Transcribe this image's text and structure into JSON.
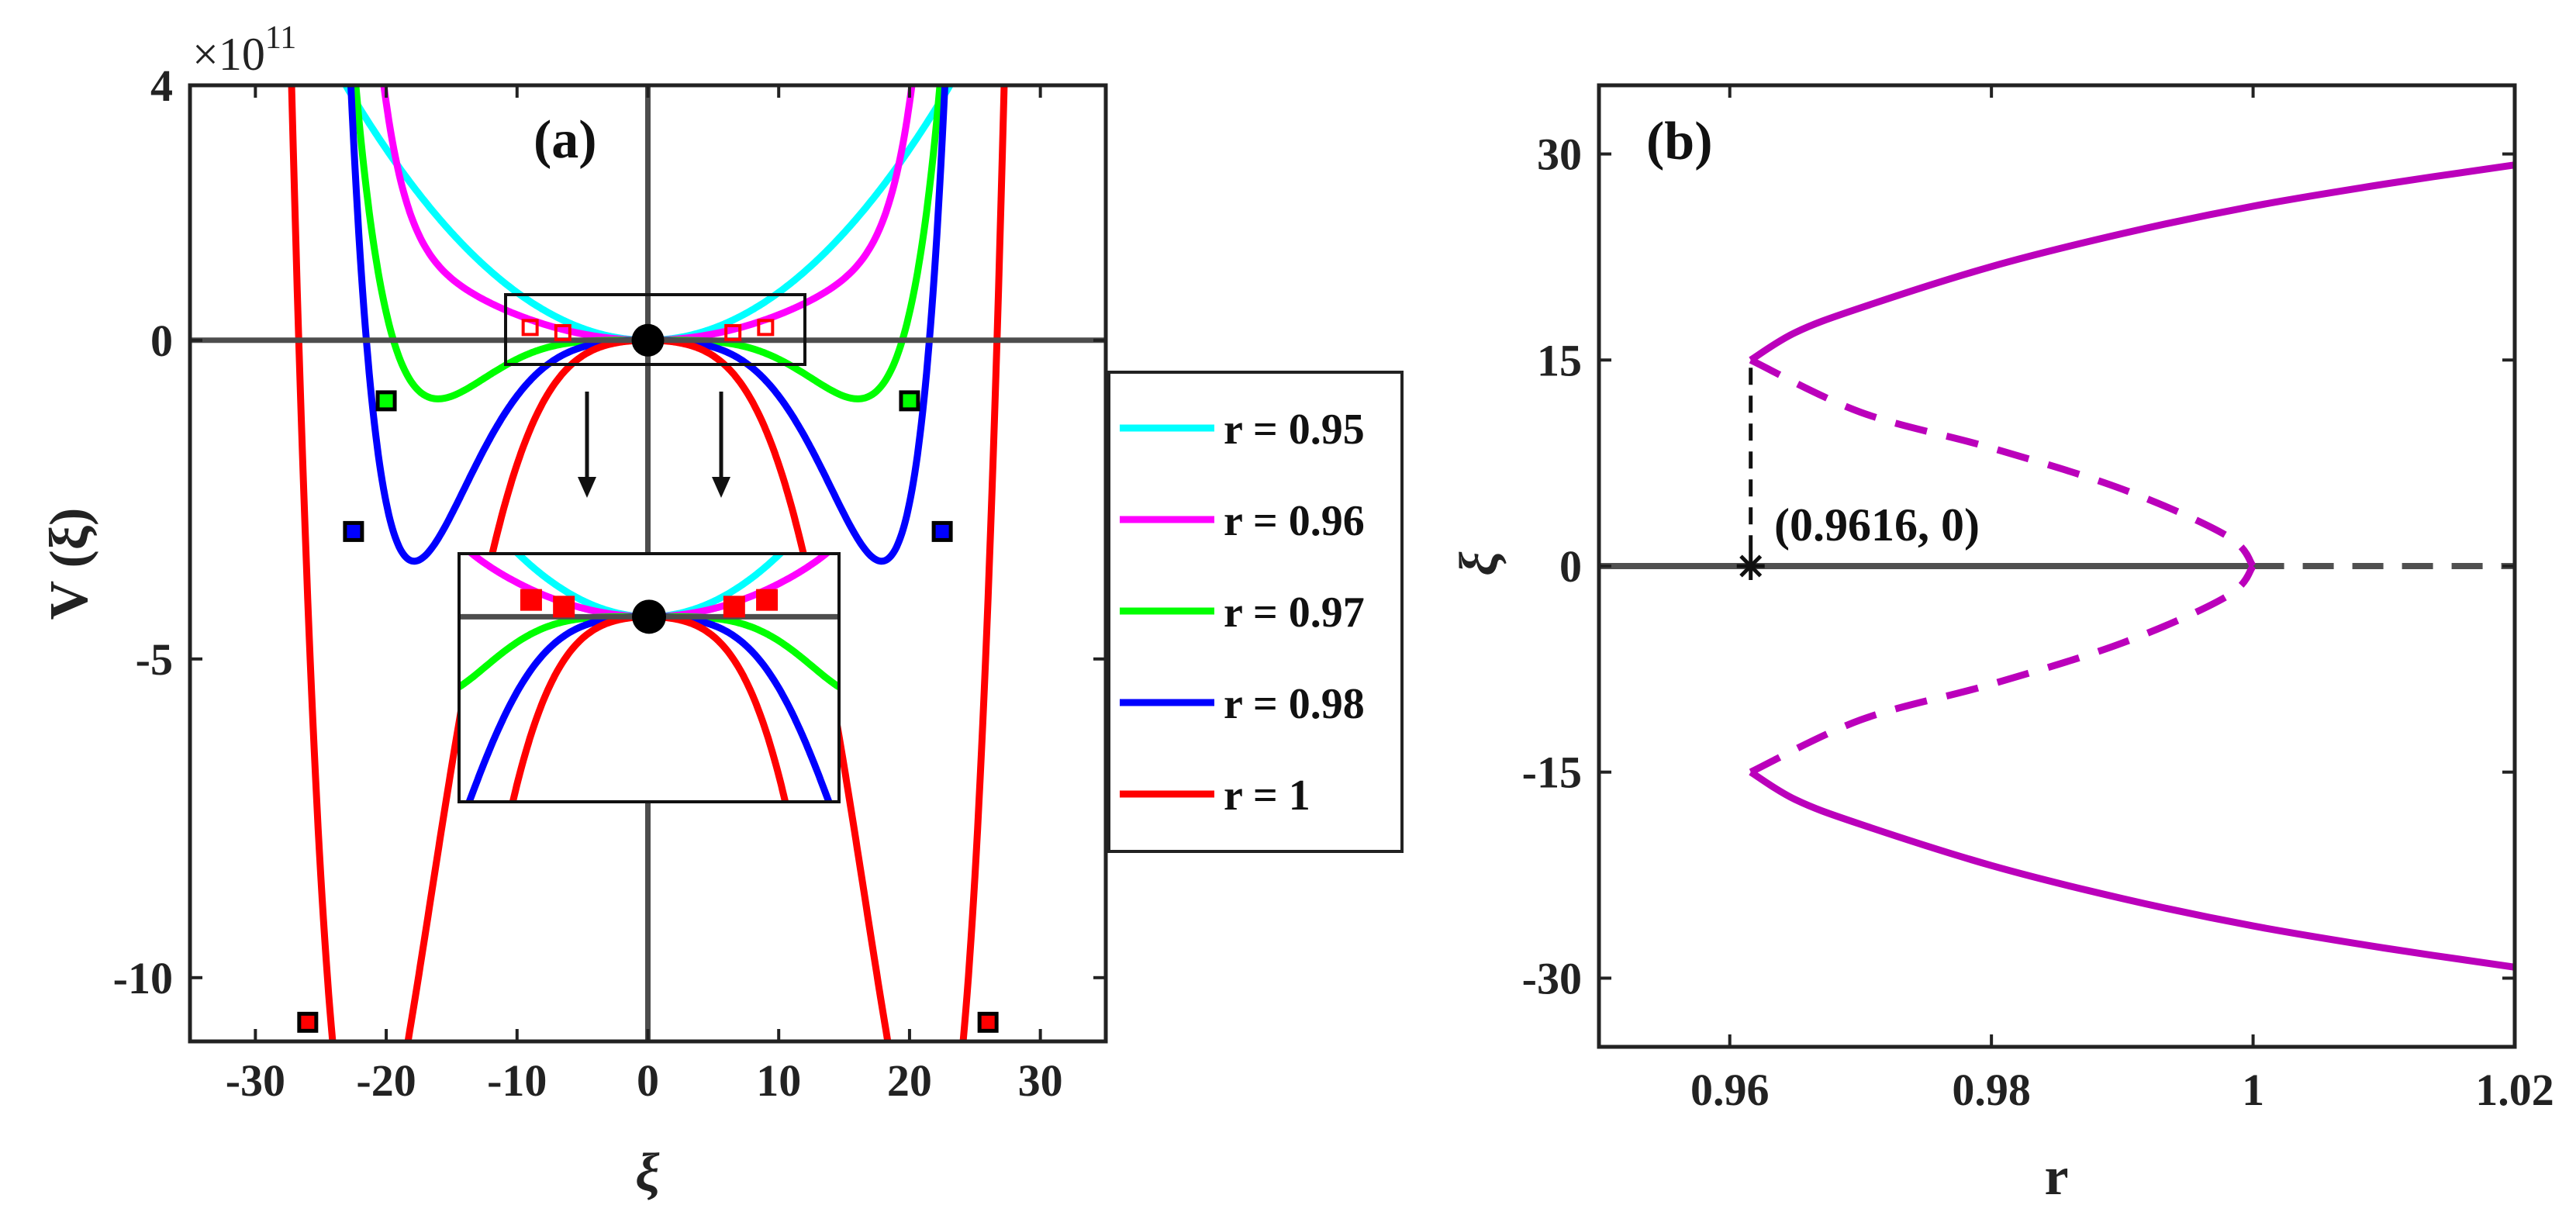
{
  "chart_data": [
    {
      "panel": "(a)",
      "type": "line",
      "title": "",
      "xlabel": "ξ",
      "ylabel": "V (ξ)",
      "xlim": [
        -35,
        35
      ],
      "ylim": [
        -11,
        4
      ],
      "y_multiplier": "×10",
      "y_multiplier_exp": "11",
      "xticks": [
        "-30",
        "-20",
        "-10",
        "0",
        "10",
        "20",
        "30"
      ],
      "xtick_values": [
        -30,
        -20,
        -10,
        0,
        10,
        20,
        30
      ],
      "yticks": [
        "4",
        "0",
        "-5",
        "-10"
      ],
      "ytick_values": [
        4,
        0,
        -5,
        -10
      ],
      "series": [
        {
          "name": "r = 0.95",
          "color": "#00ffff",
          "shape": [
            0.75,
            0,
            0,
            0
          ]
        },
        {
          "name": "r = 0.96",
          "color": "#ff00ff",
          "shape": [
            0.4,
            0.6,
            0,
            0
          ]
        },
        {
          "name": "r = 0.97",
          "color": "#00ff00",
          "shape": [
            0.02,
            0.1,
            1.0,
            20
          ]
        },
        {
          "name": "r = 0.98",
          "color": "#0000ff",
          "shape": [
            -0.24,
            0.3,
            3.0,
            22.5
          ]
        },
        {
          "name": "r = 1",
          "color": "#ff0000",
          "shape": [
            -0.6,
            0,
            10.7,
            26
          ]
        }
      ],
      "minima": [
        {
          "x": -26,
          "y": -10.7,
          "color": "#ff0000"
        },
        {
          "x": 26,
          "y": -10.7,
          "color": "#ff0000"
        },
        {
          "x": -22.5,
          "y": -3.0,
          "color": "#0000ff"
        },
        {
          "x": 22.5,
          "y": -3.0,
          "color": "#0000ff"
        },
        {
          "x": -20,
          "y": -0.95,
          "color": "#00ff00"
        },
        {
          "x": 20,
          "y": -0.95,
          "color": "#00ff00"
        }
      ],
      "maxima": [
        {
          "x": -9,
          "y": 0.2
        },
        {
          "x": 9,
          "y": 0.2
        },
        {
          "x": -6.5,
          "y": 0.12
        },
        {
          "x": 6.5,
          "y": 0.12
        }
      ],
      "inset": {
        "xlim": [
          -14.5,
          14.5
        ],
        "ylim": [
          -2.2,
          0.75
        ]
      }
    },
    {
      "panel": "(b)",
      "type": "line",
      "title": "",
      "xlabel": "r",
      "ylabel": "ξ",
      "xlim": [
        0.95,
        1.02
      ],
      "ylim": [
        -35,
        35
      ],
      "xticks": [
        "0.96",
        "0.98",
        "1",
        "1.02"
      ],
      "xtick_values": [
        0.96,
        0.98,
        1.0,
        1.02
      ],
      "yticks": [
        "30",
        "15",
        "0",
        "-15",
        "-30"
      ],
      "ytick_values": [
        30,
        15,
        0,
        -15,
        -30
      ],
      "branch_color": "#bb00bb",
      "trivial_color": "#505050",
      "fold": {
        "r": 0.9616,
        "xi": 15
      },
      "annotation": "(0.9616, 0)",
      "annotation_point": {
        "r": 0.9616,
        "xi": 0
      },
      "stable_branch": [
        [
          0.9616,
          15
        ],
        [
          0.965,
          17
        ],
        [
          0.97,
          18.8
        ],
        [
          0.98,
          21.8
        ],
        [
          0.99,
          24.2
        ],
        [
          1.0,
          26.2
        ],
        [
          1.01,
          27.8
        ],
        [
          1.02,
          29.2
        ]
      ],
      "unstable_branch": [
        [
          0.9616,
          15
        ],
        [
          0.97,
          11.2
        ],
        [
          0.98,
          8.6
        ],
        [
          0.99,
          5.6
        ],
        [
          0.998,
          2.2
        ],
        [
          1.0,
          0
        ]
      ],
      "trivial_stable": [
        [
          0.95,
          0
        ],
        [
          1.0,
          0
        ]
      ],
      "trivial_unstable": [
        [
          1.0,
          0
        ],
        [
          1.02,
          0
        ]
      ]
    }
  ]
}
